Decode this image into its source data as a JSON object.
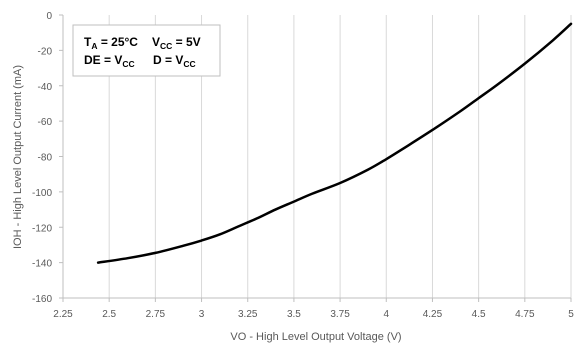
{
  "chart_data": {
    "type": "line",
    "xlabel": "VO - High Level Output Voltage (V)",
    "ylabel": "IOH - High Level Output Current (mA)",
    "xlim": [
      2.25,
      5
    ],
    "ylim": [
      -160,
      0
    ],
    "xticks": [
      2.25,
      2.5,
      2.75,
      3,
      3.25,
      3.5,
      3.75,
      4,
      4.25,
      4.5,
      4.75,
      5
    ],
    "yticks": [
      0,
      -20,
      -40,
      -60,
      -80,
      -100,
      -120,
      -140,
      -160
    ],
    "xtick_labels": [
      "2.25",
      "2.5",
      "2.75",
      "3",
      "3.25",
      "3.5",
      "3.75",
      "4",
      "4.25",
      "4.5",
      "4.75",
      "5"
    ],
    "ytick_labels": [
      "0",
      "-20",
      "-40",
      "-60",
      "-80",
      "-100",
      "-120",
      "-140",
      "-160"
    ],
    "grid": "vertical",
    "legend_placement": "top-left",
    "line_color": "#000000",
    "annotation": {
      "line1": [
        {
          "main": "T",
          "sub": "A",
          "rest": " = 25°C"
        },
        {
          "main": "V",
          "sub": "CC",
          "rest": " = 5V"
        }
      ],
      "line2": [
        {
          "main": "DE = V",
          "sub": "CC",
          "rest": ""
        },
        {
          "main": "D = V",
          "sub": "CC",
          "rest": ""
        }
      ]
    },
    "series": [
      {
        "x": [
          2.44,
          2.6,
          2.75,
          2.9,
          3.0,
          3.1,
          3.2,
          3.3,
          3.4,
          3.5,
          3.6,
          3.75,
          3.9,
          4.0,
          4.1,
          4.25,
          4.4,
          4.5,
          4.6,
          4.75,
          4.9,
          5.0
        ],
        "y": [
          -140,
          -137.5,
          -134.5,
          -130.5,
          -127.5,
          -124,
          -119.5,
          -115,
          -110,
          -105.5,
          -101,
          -95,
          -87.5,
          -81.5,
          -75,
          -65,
          -54.5,
          -47,
          -39.5,
          -27.5,
          -14.5,
          -5
        ]
      }
    ]
  }
}
